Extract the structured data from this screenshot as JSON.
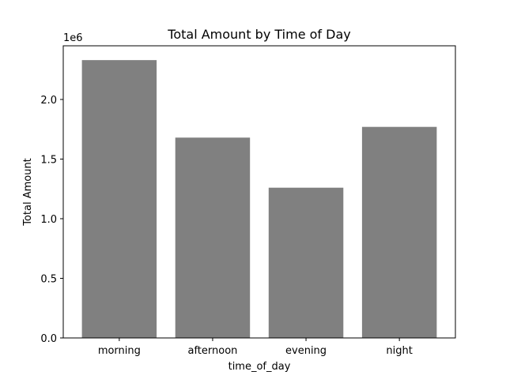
{
  "chart_data": {
    "type": "bar",
    "title": "Total Amount by Time of Day",
    "xlabel": "time_of_day",
    "ylabel": "Total Amount",
    "offset_label": "1e6",
    "categories": [
      "morning",
      "afternoon",
      "evening",
      "night"
    ],
    "values": [
      2330000,
      1680000,
      1260000,
      1770000
    ],
    "ylim": [
      0,
      2450000
    ],
    "yticks": [
      0,
      500000,
      1000000,
      1500000,
      2000000
    ],
    "ytick_labels": [
      "0.0",
      "0.5",
      "1.0",
      "1.5",
      "2.0"
    ],
    "grid": false,
    "bar_color": "#808080"
  }
}
